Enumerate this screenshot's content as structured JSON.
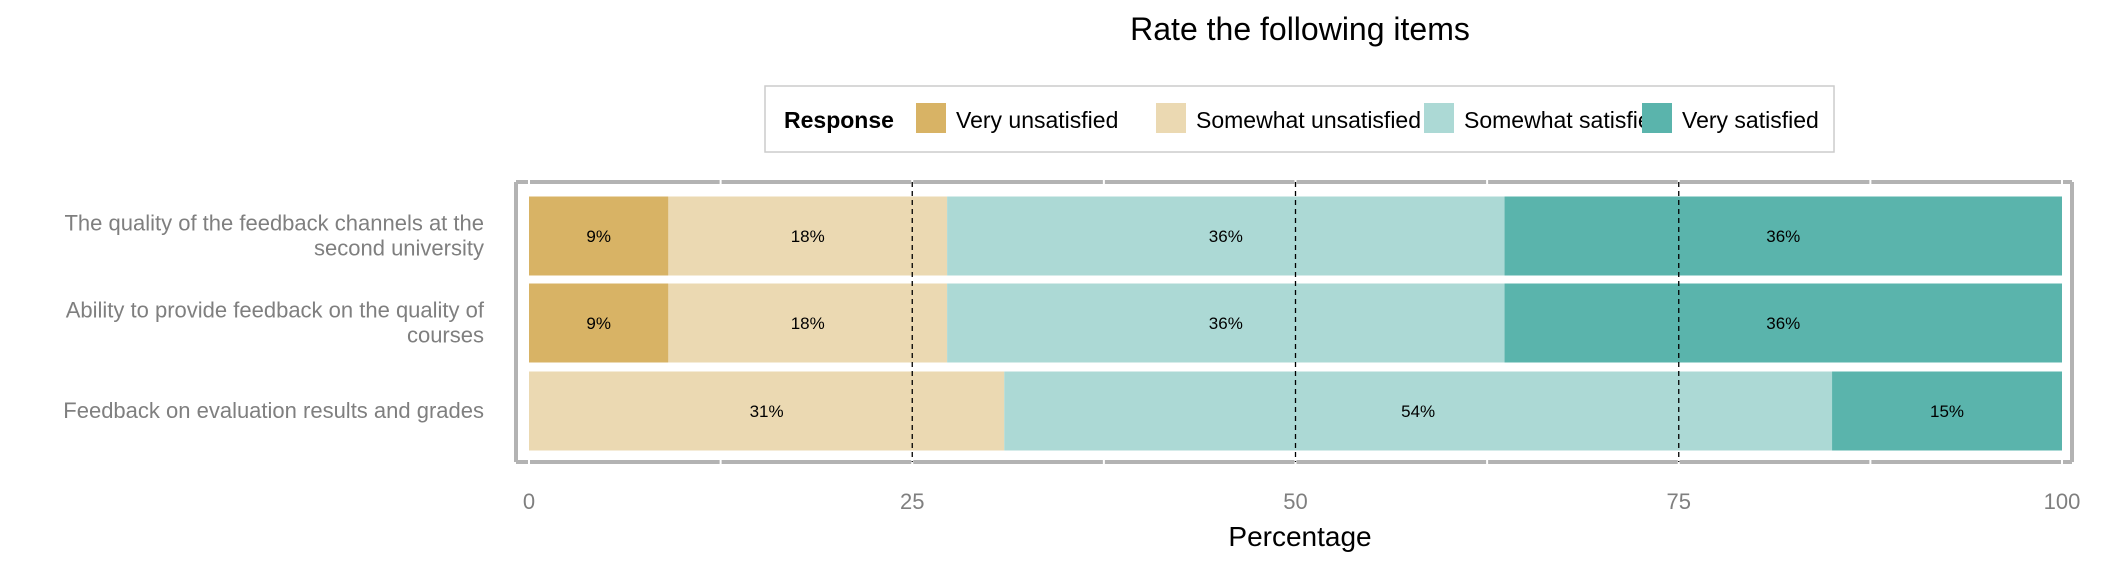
{
  "chart_data": {
    "type": "bar",
    "orientation": "horizontal",
    "stacked": true,
    "title": "Rate the following items",
    "xlabel": "Percentage",
    "ylabel": "",
    "xlim": [
      0,
      100
    ],
    "ticks": [
      0,
      25,
      50,
      75,
      100
    ],
    "reference_lines": [
      25,
      50,
      75
    ],
    "legend": {
      "title": "Response",
      "position": "top"
    },
    "categories": [
      [
        "The quality of the feedback channels at the",
        "second university"
      ],
      [
        "Ability to provide feedback on the quality of",
        "courses"
      ],
      [
        "Feedback on evaluation results and grades"
      ]
    ],
    "series": [
      {
        "name": "Very unsatisfied",
        "color": "#d8b365",
        "values": [
          9,
          9,
          0
        ],
        "labels": [
          "9%",
          "9%",
          ""
        ]
      },
      {
        "name": "Somewhat unsatisfied",
        "color": "#ebd9b2",
        "values": [
          18,
          18,
          31
        ],
        "labels": [
          "18%",
          "18%",
          "31%"
        ]
      },
      {
        "name": "Somewhat satisfied",
        "color": "#acd9d5",
        "values": [
          36,
          36,
          54
        ],
        "labels": [
          "36%",
          "36%",
          "54%"
        ]
      },
      {
        "name": "Very satisfied",
        "color": "#5ab4ac",
        "values": [
          36,
          36,
          15
        ],
        "labels": [
          "36%",
          "36%",
          "15%"
        ]
      }
    ]
  }
}
